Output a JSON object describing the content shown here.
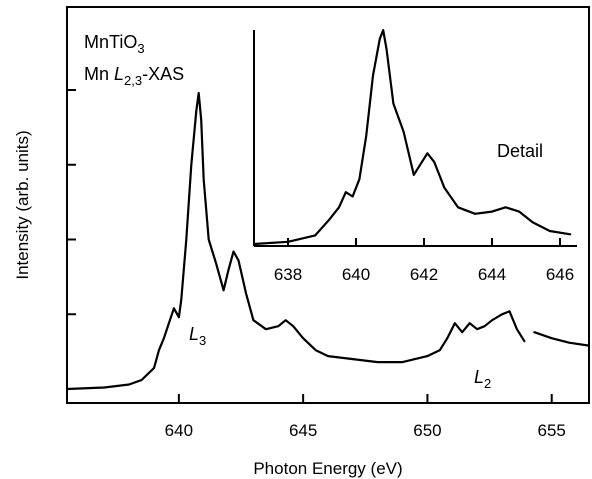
{
  "chart_data": [
    {
      "type": "line",
      "xlabel": "Photon Energy (eV)",
      "ylabel": "Intensity (arb. units)",
      "xlim": [
        635.5,
        656.5
      ],
      "ylim": [
        0,
        1.0
      ],
      "x_ticks": [
        640,
        645,
        650,
        655
      ],
      "x_tick_labels": [
        "640",
        "645",
        "650",
        "655"
      ],
      "y_labels_shown": false,
      "grid": false,
      "annotations": {
        "compound": "MnTiO",
        "compound_sub": "3",
        "edge_prefix": "Mn ",
        "edge_italic": "L",
        "edge_sub": "2,3",
        "edge_suffix": "-XAS",
        "l3_main": "L",
        "l3_sub": "3",
        "l2_main": "L",
        "l2_sub": "2"
      },
      "series": [
        {
          "x": [
            635.5,
            637.0,
            638.0,
            638.5,
            639.0,
            639.2,
            639.4,
            639.6,
            639.8,
            640.0,
            640.1,
            640.3,
            640.5,
            640.7,
            640.8,
            640.9,
            641.0,
            641.2,
            641.5,
            641.8,
            642.0,
            642.2,
            642.4,
            642.7,
            643.0,
            643.5,
            644.0,
            644.3,
            644.6,
            645.0,
            645.5,
            646.0,
            647.0,
            648.0,
            649.0,
            649.5,
            650.0,
            650.5,
            650.8,
            651.1,
            651.4,
            651.7,
            652.0,
            652.3,
            652.6,
            653.0,
            653.3,
            653.6,
            653.9
          ],
          "y": [
            0.0,
            0.005,
            0.015,
            0.03,
            0.07,
            0.13,
            0.17,
            0.22,
            0.27,
            0.24,
            0.3,
            0.5,
            0.75,
            0.93,
            0.99,
            0.9,
            0.7,
            0.5,
            0.42,
            0.33,
            0.4,
            0.46,
            0.43,
            0.32,
            0.23,
            0.2,
            0.21,
            0.23,
            0.21,
            0.17,
            0.13,
            0.11,
            0.1,
            0.09,
            0.09,
            0.1,
            0.11,
            0.13,
            0.17,
            0.22,
            0.19,
            0.22,
            0.2,
            0.21,
            0.23,
            0.25,
            0.26,
            0.2,
            0.16
          ]
        },
        {
          "x": [
            654.3,
            655.0,
            655.7,
            656.5
          ],
          "y": [
            0.19,
            0.17,
            0.155,
            0.145
          ]
        }
      ]
    },
    {
      "type": "line",
      "inset": true,
      "title": "Detail",
      "xlim": [
        637.0,
        646.5
      ],
      "ylim": [
        0,
        1.0
      ],
      "x_ticks": [
        638,
        640,
        642,
        644,
        646
      ],
      "x_tick_labels": [
        "638",
        "640",
        "642",
        "644",
        "646"
      ],
      "grid": false,
      "series": [
        {
          "x": [
            637.0,
            638.0,
            638.8,
            639.2,
            639.5,
            639.7,
            639.9,
            640.1,
            640.3,
            640.5,
            640.7,
            640.8,
            640.9,
            641.1,
            641.4,
            641.7,
            641.9,
            642.1,
            642.3,
            642.6,
            643.0,
            643.5,
            644.0,
            644.4,
            644.8,
            645.2,
            645.7,
            646.3
          ],
          "y": [
            0.0,
            0.01,
            0.04,
            0.11,
            0.17,
            0.24,
            0.22,
            0.3,
            0.5,
            0.78,
            0.95,
            0.99,
            0.9,
            0.65,
            0.52,
            0.32,
            0.37,
            0.42,
            0.38,
            0.26,
            0.17,
            0.14,
            0.15,
            0.17,
            0.15,
            0.1,
            0.06,
            0.045
          ]
        }
      ]
    }
  ]
}
